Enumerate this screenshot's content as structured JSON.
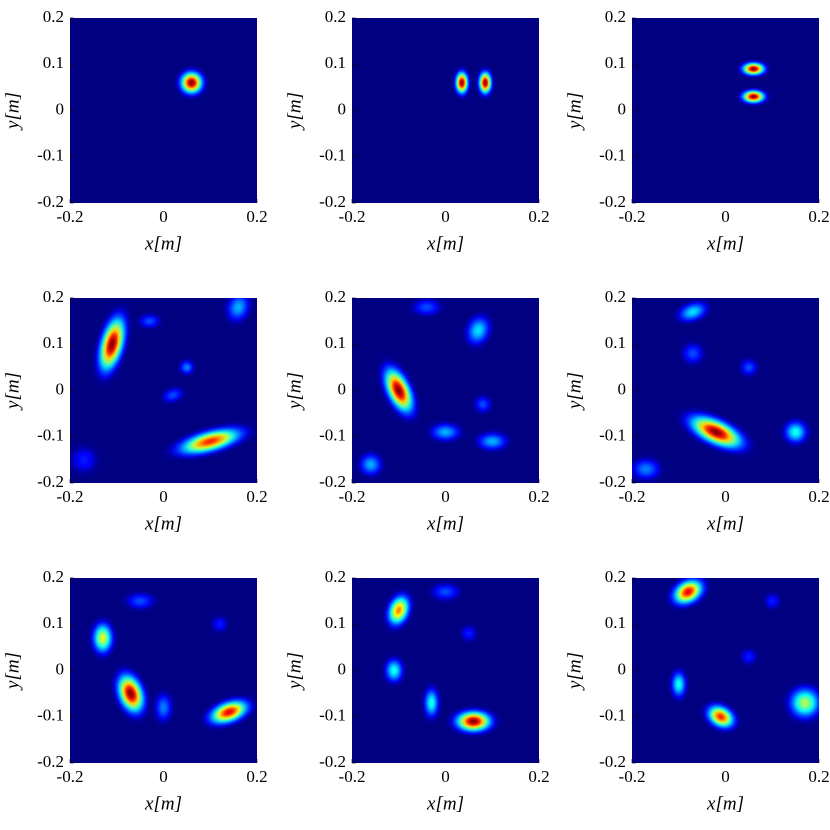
{
  "chart_data": [
    {
      "type": "heatmap",
      "xlabel": "x[m]",
      "ylabel": "y[m]",
      "xlim": [
        -0.2,
        0.2
      ],
      "ylim": [
        -0.2,
        0.2
      ],
      "xticks": [
        -0.2,
        0,
        0.2
      ],
      "yticks": [
        -0.2,
        -0.1,
        0,
        0.1,
        0.2
      ],
      "peaks": {
        "x": [
          0.06
        ],
        "y": [
          0.06
        ],
        "values": [
          1
        ],
        "sx": [
          0.014
        ],
        "sy": [
          0.014
        ],
        "angle": [
          0
        ]
      }
    },
    {
      "type": "heatmap",
      "xlabel": "x[m]",
      "ylabel": "y[m]",
      "xlim": [
        -0.2,
        0.2
      ],
      "ylim": [
        -0.2,
        0.2
      ],
      "xticks": [
        -0.2,
        0,
        0.2
      ],
      "yticks": [
        -0.2,
        -0.1,
        0,
        0.1,
        0.2
      ],
      "peaks": {
        "x": [
          0.035,
          0.085
        ],
        "y": [
          0.06,
          0.06
        ],
        "values": [
          1,
          1
        ],
        "sx": [
          0.008,
          0.008
        ],
        "sy": [
          0.014,
          0.014
        ],
        "angle": [
          0,
          0
        ]
      }
    },
    {
      "type": "heatmap",
      "xlabel": "x[m]",
      "ylabel": "y[m]",
      "xlim": [
        -0.2,
        0.2
      ],
      "ylim": [
        -0.2,
        0.2
      ],
      "xticks": [
        -0.2,
        0,
        0.2
      ],
      "yticks": [
        -0.2,
        -0.1,
        0,
        0.1,
        0.2
      ],
      "peaks": {
        "x": [
          0.06,
          0.06
        ],
        "y": [
          0.09,
          0.03
        ],
        "values": [
          1,
          1
        ],
        "sx": [
          0.014,
          0.014
        ],
        "sy": [
          0.008,
          0.008
        ],
        "angle": [
          0,
          0
        ]
      }
    },
    {
      "type": "heatmap",
      "xlabel": "x[m]",
      "ylabel": "y[m]",
      "xlim": [
        -0.2,
        0.2
      ],
      "ylim": [
        -0.2,
        0.2
      ],
      "xticks": [
        -0.2,
        0,
        0.2
      ],
      "yticks": [
        -0.2,
        -0.1,
        0,
        0.1,
        0.2
      ],
      "peaks": {
        "x": [
          -0.11,
          0.1,
          0.05,
          0.02,
          -0.03,
          0.16,
          -0.17
        ],
        "y": [
          0.1,
          -0.11,
          0.05,
          -0.01,
          0.15,
          0.18,
          -0.15
        ],
        "values": [
          1,
          0.85,
          0.25,
          0.2,
          0.2,
          0.3,
          0.15
        ],
        "sx": [
          0.014,
          0.04,
          0.01,
          0.015,
          0.015,
          0.015,
          0.02
        ],
        "sy": [
          0.035,
          0.013,
          0.01,
          0.01,
          0.01,
          0.02,
          0.02
        ],
        "angle": [
          15,
          -15,
          0,
          -20,
          0,
          20,
          0
        ]
      }
    },
    {
      "type": "heatmap",
      "xlabel": "x[m]",
      "ylabel": "y[m]",
      "xlim": [
        -0.2,
        0.2
      ],
      "ylim": [
        -0.2,
        0.2
      ],
      "xticks": [
        -0.2,
        0,
        0.2
      ],
      "yticks": [
        -0.2,
        -0.1,
        0,
        0.1,
        0.2
      ],
      "peaks": {
        "x": [
          -0.1,
          0.07,
          0.0,
          0.1,
          -0.16,
          0.08,
          -0.04
        ],
        "y": [
          0.0,
          0.13,
          -0.09,
          -0.11,
          -0.16,
          -0.03,
          0.18
        ],
        "values": [
          1,
          0.35,
          0.3,
          0.3,
          0.3,
          0.2,
          0.2
        ],
        "sx": [
          0.014,
          0.015,
          0.02,
          0.02,
          0.015,
          0.012,
          0.02
        ],
        "sy": [
          0.03,
          0.02,
          0.012,
          0.012,
          0.015,
          0.012,
          0.012
        ],
        "angle": [
          -25,
          20,
          0,
          0,
          0,
          0,
          0
        ]
      }
    },
    {
      "type": "heatmap",
      "xlabel": "x[m]",
      "ylabel": "y[m]",
      "xlim": [
        -0.2,
        0.2
      ],
      "ylim": [
        -0.2,
        0.2
      ],
      "xticks": [
        -0.2,
        0,
        0.2
      ],
      "yticks": [
        -0.2,
        -0.1,
        0,
        0.1,
        0.2
      ],
      "peaks": {
        "x": [
          -0.02,
          -0.07,
          0.15,
          -0.07,
          -0.17,
          0.05
        ],
        "y": [
          -0.09,
          0.17,
          -0.09,
          0.08,
          -0.17,
          0.05
        ],
        "values": [
          1,
          0.35,
          0.4,
          0.2,
          0.25,
          0.2
        ],
        "sx": [
          0.035,
          0.02,
          0.015,
          0.015,
          0.02,
          0.012
        ],
        "sy": [
          0.015,
          0.012,
          0.015,
          0.015,
          0.015,
          0.012
        ],
        "angle": [
          25,
          -20,
          0,
          0,
          0,
          0
        ]
      }
    },
    {
      "type": "heatmap",
      "xlabel": "x[m]",
      "ylabel": "y[m]",
      "xlim": [
        -0.2,
        0.2
      ],
      "ylim": [
        -0.2,
        0.2
      ],
      "xticks": [
        -0.2,
        0,
        0.2
      ],
      "yticks": [
        -0.2,
        -0.1,
        0,
        0.1,
        0.2
      ],
      "peaks": {
        "x": [
          -0.07,
          0.14,
          -0.13,
          0.0,
          -0.05,
          0.12
        ],
        "y": [
          -0.05,
          -0.09,
          0.07,
          -0.08,
          0.15,
          0.1
        ],
        "values": [
          1,
          0.9,
          0.6,
          0.25,
          0.2,
          0.15
        ],
        "sx": [
          0.015,
          0.025,
          0.013,
          0.012,
          0.02,
          0.012
        ],
        "sy": [
          0.025,
          0.013,
          0.02,
          0.02,
          0.012,
          0.012
        ],
        "angle": [
          -20,
          -20,
          0,
          0,
          0,
          0
        ]
      }
    },
    {
      "type": "heatmap",
      "xlabel": "x[m]",
      "ylabel": "y[m]",
      "xlim": [
        -0.2,
        0.2
      ],
      "ylim": [
        -0.2,
        0.2
      ],
      "xticks": [
        -0.2,
        0,
        0.2
      ],
      "yticks": [
        -0.2,
        -0.1,
        0,
        0.1,
        0.2
      ],
      "peaks": {
        "x": [
          0.06,
          -0.1,
          -0.11,
          -0.03,
          0.0,
          0.05
        ],
        "y": [
          -0.11,
          0.13,
          0.0,
          -0.07,
          0.17,
          0.08
        ],
        "values": [
          1,
          0.75,
          0.4,
          0.4,
          0.2,
          0.15
        ],
        "sx": [
          0.022,
          0.013,
          0.012,
          0.01,
          0.02,
          0.012
        ],
        "sy": [
          0.013,
          0.02,
          0.016,
          0.02,
          0.012,
          0.012
        ],
        "angle": [
          0,
          20,
          0,
          0,
          0,
          0
        ]
      }
    },
    {
      "type": "heatmap",
      "xlabel": "x[m]",
      "ylabel": "y[m]",
      "xlim": [
        -0.2,
        0.2
      ],
      "ylim": [
        -0.2,
        0.2
      ],
      "xticks": [
        -0.2,
        0,
        0.2
      ],
      "yticks": [
        -0.2,
        -0.1,
        0,
        0.1,
        0.2
      ],
      "peaks": {
        "x": [
          -0.08,
          -0.01,
          0.17,
          -0.1,
          0.05,
          0.1
        ],
        "y": [
          0.17,
          -0.1,
          -0.07,
          -0.03,
          0.03,
          0.15
        ],
        "values": [
          0.9,
          0.85,
          0.55,
          0.4,
          0.15,
          0.15
        ],
        "sx": [
          0.02,
          0.018,
          0.02,
          0.01,
          0.012,
          0.012
        ],
        "sy": [
          0.014,
          0.013,
          0.02,
          0.018,
          0.012,
          0.012
        ],
        "angle": [
          -30,
          30,
          0,
          0,
          0,
          0
        ]
      }
    }
  ]
}
